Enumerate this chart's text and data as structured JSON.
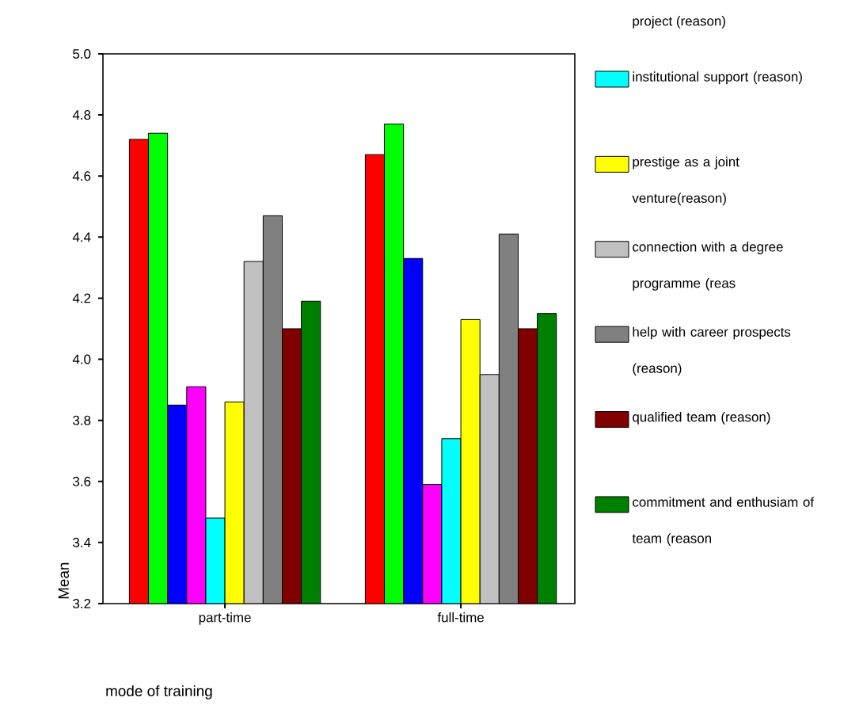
{
  "chart_data": {
    "type": "bar",
    "categories": [
      "part-time",
      "full-time"
    ],
    "xlabel": "mode of training",
    "ylabel": "Mean",
    "ylim": [
      3.2,
      5.0
    ],
    "yticks": [
      {
        "value": 3.2,
        "label": "3.2"
      },
      {
        "value": 3.4,
        "label": "3.4"
      },
      {
        "value": 3.6,
        "label": "3.6"
      },
      {
        "value": 3.8,
        "label": "3.8"
      },
      {
        "value": 4.0,
        "label": "4.0"
      },
      {
        "value": 4.2,
        "label": "4.2"
      },
      {
        "value": 4.4,
        "label": "4.4"
      },
      {
        "value": 4.6,
        "label": "4.6"
      },
      {
        "value": 4.8,
        "label": "4.8"
      },
      {
        "value": 5.0,
        "label": "5.0"
      }
    ],
    "legend": "right",
    "annotations": [
      "project (reason)"
    ],
    "series": [
      {
        "color": "#ff0000",
        "values": [
          4.72,
          4.67
        ]
      },
      {
        "color": "#00ff00",
        "values": [
          4.74,
          4.77
        ]
      },
      {
        "color": "#0000ff",
        "values": [
          3.85,
          4.33
        ]
      },
      {
        "color": "#ff00ff",
        "values": [
          3.91,
          3.59
        ]
      },
      {
        "name": "institutional support (reason)",
        "color": "#00ffff",
        "values": [
          3.48,
          3.74
        ]
      },
      {
        "name": "prestige as a joint venture(reason)",
        "color": "#ffff00",
        "values": [
          3.86,
          4.13
        ]
      },
      {
        "name": "connection with a degree programme (reas",
        "color": "#c0c0c0",
        "values": [
          4.32,
          3.95
        ]
      },
      {
        "name": "help with career prospects (reason)",
        "color": "#808080",
        "values": [
          4.47,
          4.41
        ]
      },
      {
        "name": "qualified team (reason)",
        "color": "#800000",
        "values": [
          4.1,
          4.1
        ]
      },
      {
        "name": "commitment and enthusiam of team (reason",
        "color": "#008000",
        "values": [
          4.19,
          4.15
        ]
      }
    ]
  }
}
